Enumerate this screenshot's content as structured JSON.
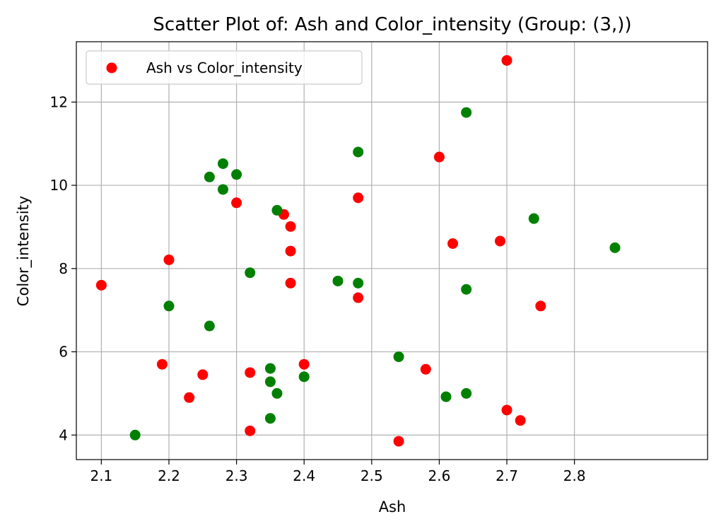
{
  "chart_data": {
    "type": "scatter",
    "title": "Scatter Plot of: Ash and Color_intensity (Group: (3,))",
    "xlabel": "Ash",
    "ylabel": "Color_intensity",
    "xlim": [
      2.063,
      2.997
    ],
    "ylim": [
      3.41,
      13.45
    ],
    "xticks": [
      "2.1",
      "2.2",
      "2.3",
      "2.4",
      "2.5",
      "2.6",
      "2.7",
      "2.8"
    ],
    "yticks": [
      "4",
      "6",
      "8",
      "10",
      "12"
    ],
    "grid": true,
    "legend": {
      "placement": "top-left",
      "entries": [
        {
          "label": "Ash vs Color_intensity",
          "color": "#ff0000"
        }
      ]
    },
    "series": [
      {
        "name": "Ash vs Color_intensity",
        "color": "#ff0000",
        "points": [
          [
            2.1,
            7.6
          ],
          [
            2.19,
            5.7
          ],
          [
            2.2,
            8.21
          ],
          [
            2.23,
            4.9
          ],
          [
            2.25,
            5.45
          ],
          [
            2.3,
            9.58
          ],
          [
            2.32,
            5.5
          ],
          [
            2.32,
            4.1
          ],
          [
            2.37,
            9.3
          ],
          [
            2.38,
            9.01
          ],
          [
            2.38,
            8.42
          ],
          [
            2.38,
            7.65
          ],
          [
            2.4,
            5.7
          ],
          [
            2.48,
            9.7
          ],
          [
            2.48,
            7.3
          ],
          [
            2.54,
            3.85
          ],
          [
            2.58,
            5.58
          ],
          [
            2.6,
            10.68
          ],
          [
            2.62,
            8.6
          ],
          [
            2.69,
            8.66
          ],
          [
            2.7,
            13.0
          ],
          [
            2.7,
            4.6
          ],
          [
            2.72,
            4.35
          ],
          [
            2.75,
            7.1
          ]
        ]
      },
      {
        "color": "#008000",
        "points": [
          [
            2.15,
            4.0
          ],
          [
            2.2,
            7.1
          ],
          [
            2.26,
            10.2
          ],
          [
            2.26,
            6.62
          ],
          [
            2.28,
            10.52
          ],
          [
            2.28,
            9.9
          ],
          [
            2.3,
            10.26
          ],
          [
            2.32,
            7.9
          ],
          [
            2.35,
            5.6
          ],
          [
            2.35,
            5.28
          ],
          [
            2.35,
            4.4
          ],
          [
            2.36,
            9.4
          ],
          [
            2.36,
            5.0
          ],
          [
            2.4,
            5.4
          ],
          [
            2.45,
            7.7
          ],
          [
            2.48,
            10.8
          ],
          [
            2.48,
            7.65
          ],
          [
            2.54,
            5.88
          ],
          [
            2.61,
            4.92
          ],
          [
            2.64,
            11.75
          ],
          [
            2.64,
            7.5
          ],
          [
            2.64,
            5.0
          ],
          [
            2.74,
            9.2
          ],
          [
            2.86,
            8.5
          ]
        ]
      }
    ]
  }
}
